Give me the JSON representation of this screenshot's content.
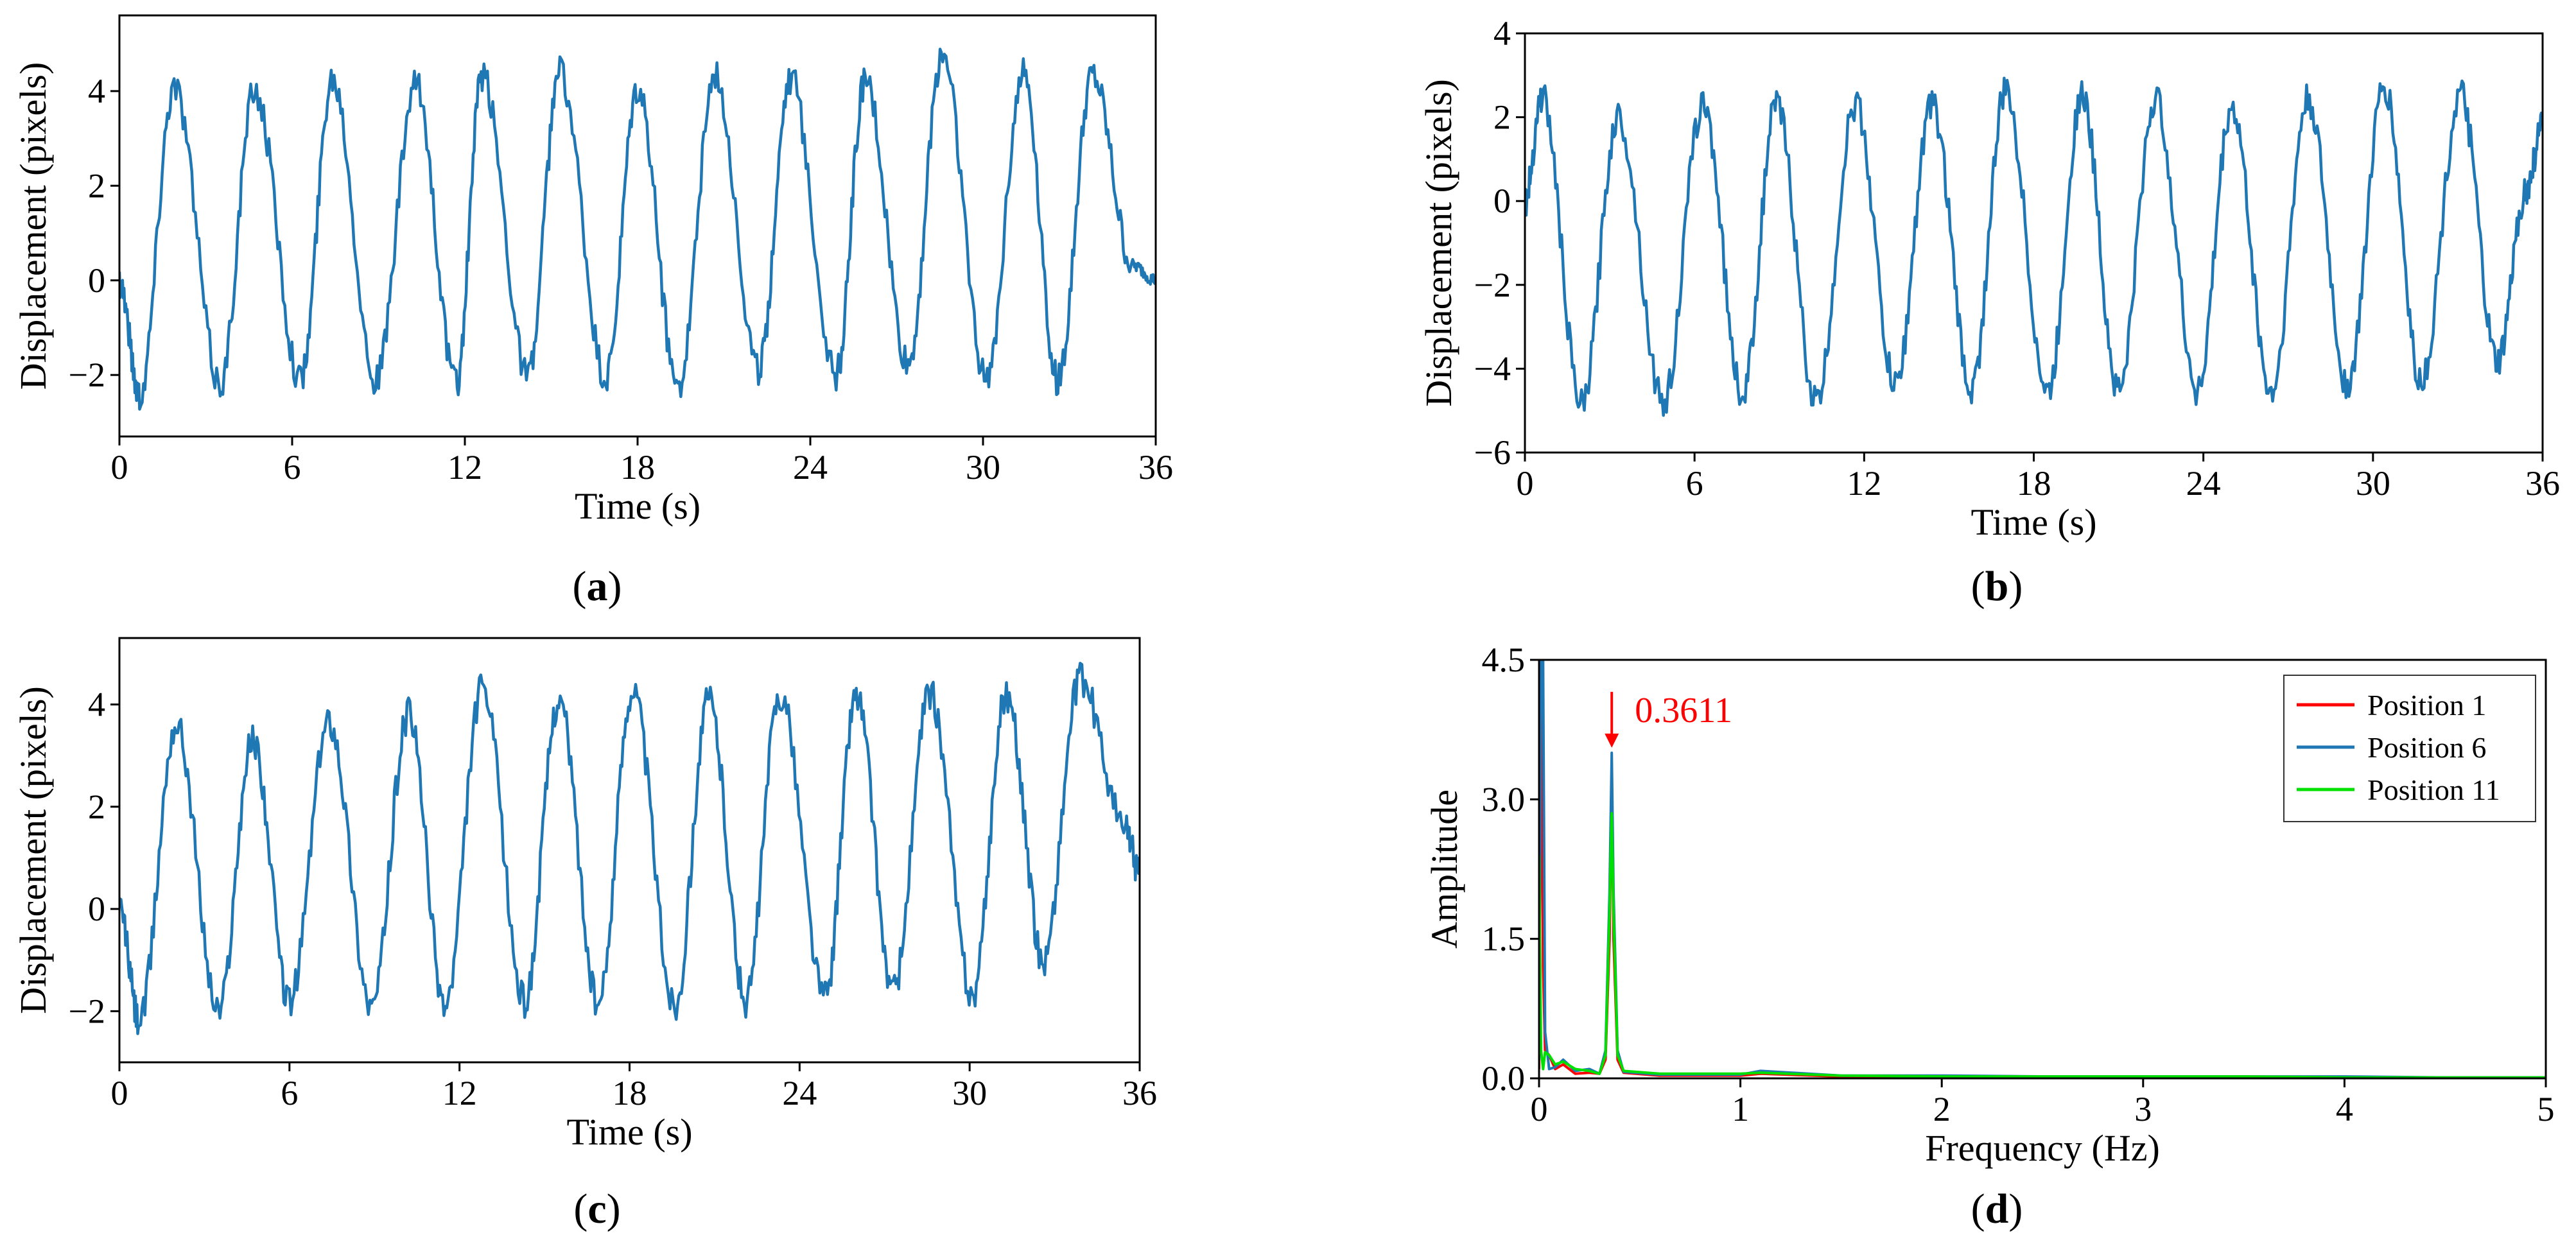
{
  "chart_data": [
    {
      "id": "a",
      "type": "line",
      "panel_label": "a",
      "xlabel": "Time (s)",
      "ylabel": "Displacement (pixels)",
      "xlim": [
        0,
        36
      ],
      "ylim": [
        -3.3,
        5.6
      ],
      "xticks": [
        0,
        6,
        12,
        18,
        24,
        30,
        36
      ],
      "yticks": [
        -2,
        0,
        2,
        4
      ],
      "series": [
        {
          "name": "displacement",
          "color": "#1f77b4",
          "x": [
            0,
            0.7,
            1.9,
            3.5,
            4.7,
            6.3,
            7.4,
            8.9,
            10.3,
            11.7,
            12.6,
            14.2,
            15.3,
            16.9,
            18.0,
            19.4,
            20.7,
            22.2,
            23.3,
            24.9,
            25.9,
            27.4,
            28.6,
            30.1,
            31.4,
            32.6,
            33.8,
            35.2,
            36
          ],
          "y": [
            0,
            -2.4,
            4.1,
            -2.2,
            4.0,
            -2.1,
            4.3,
            -2.1,
            4.1,
            -2.2,
            4.3,
            -2.0,
            4.4,
            -2.1,
            4.0,
            -2.2,
            4.3,
            -1.9,
            4.3,
            -2.0,
            4.2,
            -1.8,
            4.8,
            -2.1,
            4.4,
            -2.1,
            4.3,
            0.3,
            0
          ]
        }
      ]
    },
    {
      "id": "b",
      "type": "line",
      "panel_label": "b",
      "xlabel": "Time (s)",
      "ylabel": "Displacement (pixels)",
      "xlim": [
        0,
        36
      ],
      "ylim": [
        -6,
        4
      ],
      "xticks": [
        0,
        6,
        12,
        18,
        24,
        30,
        36
      ],
      "yticks": [
        -6,
        -4,
        -2,
        0,
        2,
        4
      ],
      "series": [
        {
          "name": "displacement",
          "color": "#1f77b4",
          "x": [
            0,
            0.6,
            2.0,
            3.3,
            4.9,
            6.3,
            7.7,
            8.9,
            10.3,
            11.7,
            13.1,
            14.4,
            15.8,
            17.0,
            18.5,
            19.7,
            21.0,
            22.3,
            23.8,
            25.0,
            26.4,
            27.7,
            29.1,
            30.4,
            31.7,
            33.1,
            34.4,
            35.4,
            36
          ],
          "y": [
            0,
            2.5,
            -4.9,
            2.0,
            -4.8,
            2.3,
            -4.6,
            2.3,
            -4.8,
            2.3,
            -4.4,
            2.3,
            -4.5,
            2.6,
            -4.6,
            2.5,
            -4.5,
            2.4,
            -4.5,
            2.2,
            -4.6,
            2.4,
            -4.4,
            2.7,
            -4.3,
            2.5,
            -3.9,
            0.2,
            1.8
          ]
        }
      ]
    },
    {
      "id": "c",
      "type": "line",
      "panel_label": "c",
      "xlabel": "Time (s)",
      "ylabel": "Displacement (pixels)",
      "xlim": [
        0,
        36
      ],
      "ylim": [
        -3,
        5.3
      ],
      "xticks": [
        0,
        6,
        12,
        18,
        24,
        30,
        36
      ],
      "yticks": [
        -2,
        0,
        2,
        4
      ],
      "series": [
        {
          "name": "displacement",
          "color": "#1f77b4",
          "x": [
            0,
            0.7,
            2.0,
            3.5,
            4.7,
            6.0,
            7.4,
            8.9,
            10.2,
            11.5,
            12.8,
            14.3,
            15.5,
            16.9,
            18.1,
            19.6,
            20.8,
            22.1,
            23.3,
            24.9,
            26.0,
            27.3,
            28.6,
            30.1,
            31.3,
            32.6,
            33.9,
            35.5,
            36
          ],
          "y": [
            0,
            -2.2,
            3.6,
            -2.0,
            3.3,
            -1.8,
            3.7,
            -1.9,
            3.8,
            -1.9,
            4.3,
            -1.8,
            4.1,
            -1.9,
            4.3,
            -1.9,
            4.1,
            -1.8,
            4.2,
            -1.7,
            4.2,
            -1.6,
            4.2,
            -1.7,
            4.2,
            -1.0,
            4.5,
            1.6,
            0.7
          ]
        }
      ]
    },
    {
      "id": "d",
      "type": "line",
      "panel_label": "d",
      "xlabel": "Frequency (Hz)",
      "ylabel": "Amplitude",
      "xlim": [
        0,
        5
      ],
      "ylim": [
        0,
        4.5
      ],
      "xticks": [
        0,
        1,
        2,
        3,
        4,
        5
      ],
      "yticks": [
        0.0,
        1.5,
        3.0,
        4.5
      ],
      "ytick_labels": [
        "0.0",
        "1.5",
        "3.0",
        "4.5"
      ],
      "legend": "top-right",
      "annotation": {
        "text": "0.3611",
        "x": 0.3611,
        "y": 3.5,
        "color": "#ff0000"
      },
      "series": [
        {
          "name": "Position 1",
          "color": "#ff0000",
          "x": [
            0,
            0.01,
            0.02,
            0.03,
            0.05,
            0.08,
            0.12,
            0.18,
            0.25,
            0.3,
            0.33,
            0.35,
            0.3611,
            0.37,
            0.39,
            0.42,
            0.6,
            1.0,
            1.1,
            1.5,
            2.0,
            2.5,
            3.0,
            3.5,
            4.0,
            4.5,
            5.0
          ],
          "y": [
            0.1,
            4.5,
            1.2,
            0.3,
            0.25,
            0.1,
            0.15,
            0.05,
            0.06,
            0.05,
            0.2,
            1.5,
            3.3,
            1.5,
            0.2,
            0.06,
            0.03,
            0.03,
            0.05,
            0.02,
            0.02,
            0.02,
            0.01,
            0.02,
            0.01,
            0.01,
            0.01
          ]
        },
        {
          "name": "Position 6",
          "color": "#1f77b4",
          "x": [
            0,
            0.01,
            0.02,
            0.03,
            0.05,
            0.08,
            0.12,
            0.18,
            0.25,
            0.3,
            0.33,
            0.35,
            0.3611,
            0.37,
            0.39,
            0.42,
            0.6,
            1.0,
            1.1,
            1.5,
            2.0,
            2.5,
            3.0,
            3.5,
            4.0,
            4.5,
            5.0
          ],
          "y": [
            0.2,
            4.5,
            4.5,
            0.5,
            0.1,
            0.12,
            0.2,
            0.08,
            0.1,
            0.05,
            0.3,
            2.0,
            3.5,
            2.0,
            0.3,
            0.07,
            0.04,
            0.04,
            0.08,
            0.03,
            0.03,
            0.02,
            0.02,
            0.02,
            0.02,
            0.01,
            0.01
          ]
        },
        {
          "name": "Position 11",
          "color": "#00e000",
          "x": [
            0,
            0.01,
            0.02,
            0.03,
            0.05,
            0.08,
            0.12,
            0.18,
            0.25,
            0.3,
            0.33,
            0.35,
            0.3611,
            0.37,
            0.39,
            0.42,
            0.6,
            1.0,
            1.1,
            1.5,
            2.0,
            2.5,
            3.0,
            3.5,
            4.0,
            4.5,
            5.0
          ],
          "y": [
            2.4,
            0.3,
            0.1,
            0.28,
            0.25,
            0.15,
            0.18,
            0.1,
            0.08,
            0.05,
            0.25,
            1.8,
            2.85,
            1.8,
            0.25,
            0.08,
            0.05,
            0.05,
            0.06,
            0.03,
            0.02,
            0.02,
            0.02,
            0.02,
            0.01,
            0.01,
            0.01
          ]
        }
      ]
    }
  ]
}
